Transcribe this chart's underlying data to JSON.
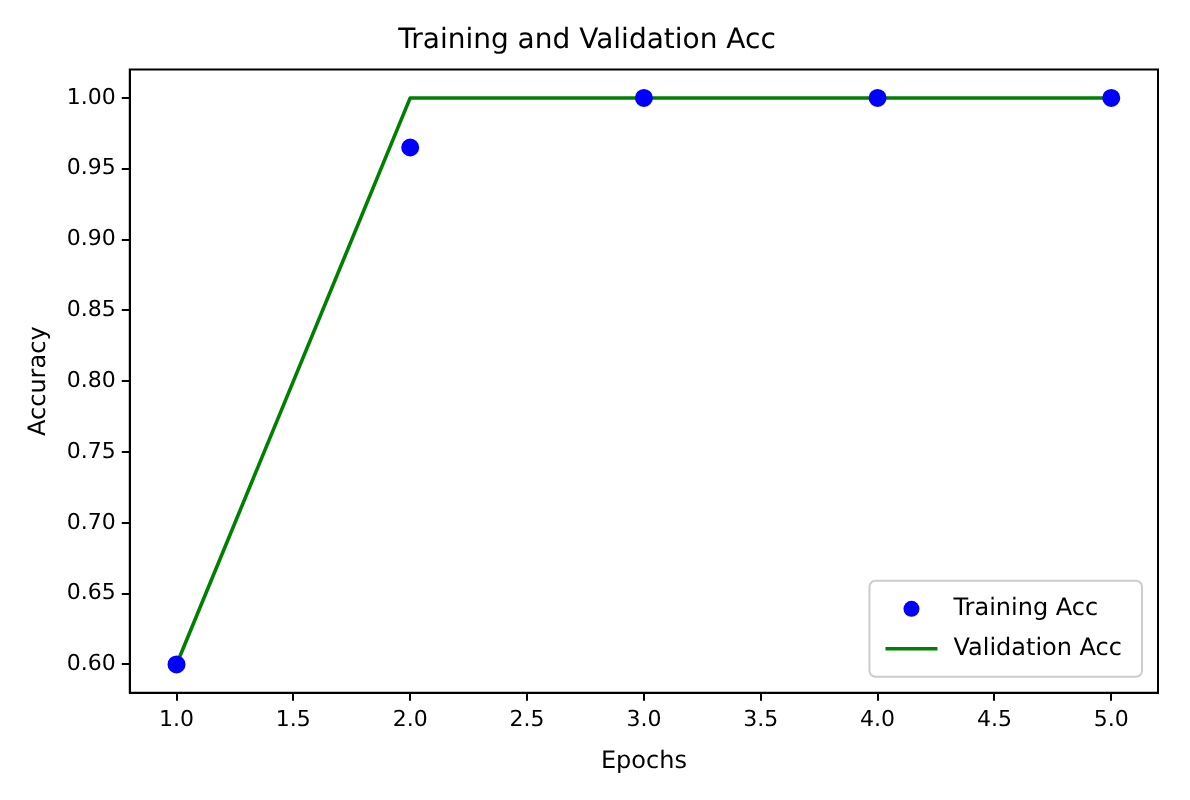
{
  "chart_data": {
    "type": "line",
    "title": "Training and Validation Acc",
    "xlabel": "Epochs",
    "ylabel": "Accuracy",
    "x": [
      1,
      2,
      3,
      4,
      5
    ],
    "series": [
      {
        "name": "Training Acc",
        "type": "scatter",
        "color": "#0000ff",
        "marker": "circle",
        "values": [
          0.6,
          0.965,
          1.0,
          1.0,
          1.0
        ]
      },
      {
        "name": "Validation Acc",
        "type": "line",
        "color": "#008000",
        "marker": "none",
        "line_style": "solid",
        "values": [
          0.6,
          1.0,
          1.0,
          1.0,
          1.0
        ]
      }
    ],
    "xlim": [
      0.8,
      5.2
    ],
    "xticks": [
      {
        "value": 1,
        "label": "1.0"
      },
      1.5,
      {
        "value": 2,
        "label": "2.0"
      },
      2.5,
      {
        "value": 3,
        "label": "3.0"
      },
      3.5,
      {
        "value": 4,
        "label": "4.0"
      },
      4.5,
      {
        "value": 5,
        "label": "5.0"
      }
    ],
    "ylim": [
      0.58,
      1.02
    ],
    "yticks": [
      {
        "value": 0.6,
        "label": "0.60"
      },
      0.65,
      {
        "value": 0.7,
        "label": "0.70"
      },
      0.75,
      {
        "value": 0.8,
        "label": "0.80"
      },
      0.85,
      {
        "value": 0.9,
        "label": "0.90"
      },
      0.95,
      {
        "value": 1.0,
        "label": "1.00"
      }
    ],
    "grid": false,
    "legend": "bottom right"
  }
}
